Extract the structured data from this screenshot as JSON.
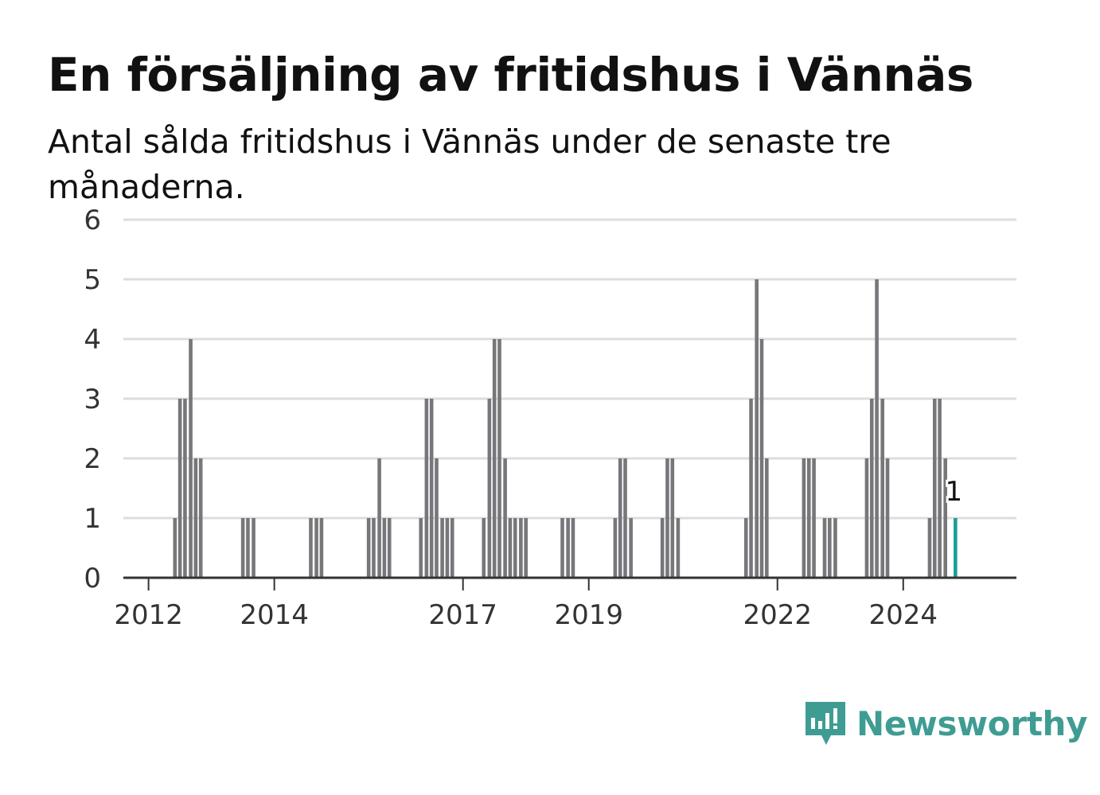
{
  "title": "En försäljning av fritidshus i Vännäs",
  "subtitle": "Antal sålda fritidshus i Vännäs under de senaste tre månaderna.",
  "brand": {
    "name": "Newsworthy",
    "icon": "newsworthy-logo-icon",
    "color": "#3f9c93"
  },
  "colors": {
    "bar": "#77777b",
    "highlight": "#1a9e96",
    "grid": "#dddddd",
    "axis": "#333333"
  },
  "chart_data": {
    "type": "bar",
    "xlabel": "",
    "ylabel": "",
    "ylim": [
      0,
      6
    ],
    "yticks": [
      0,
      1,
      2,
      3,
      4,
      5,
      6
    ],
    "xlim": [
      2011.6,
      2025.8
    ],
    "xticks": [
      {
        "label": "2012",
        "value": 2012
      },
      {
        "label": "2014",
        "value": 2014
      },
      {
        "label": "2017",
        "value": 2017
      },
      {
        "label": "2019",
        "value": 2019
      },
      {
        "label": "2022",
        "value": 2022
      },
      {
        "label": "2024",
        "value": 2024
      }
    ],
    "grid": true,
    "series": [
      {
        "x": [
          2012.42,
          2012.5,
          2012.58,
          2012.67,
          2012.75,
          2012.83,
          2013.5,
          2013.58,
          2013.67,
          2014.58,
          2014.67,
          2014.75,
          2015.5,
          2015.58,
          2015.67,
          2015.75,
          2015.83,
          2016.33,
          2016.42,
          2016.5,
          2016.58,
          2016.67,
          2016.75,
          2016.83,
          2017.33,
          2017.42,
          2017.5,
          2017.58,
          2017.67,
          2017.75,
          2017.83,
          2017.92,
          2018.0,
          2018.58,
          2018.67,
          2018.75,
          2019.42,
          2019.5,
          2019.58,
          2019.67,
          2020.17,
          2020.25,
          2020.33,
          2020.42,
          2021.5,
          2021.58,
          2021.67,
          2021.75,
          2021.83,
          2022.42,
          2022.5,
          2022.58,
          2022.75,
          2022.83,
          2022.92,
          2023.42,
          2023.5,
          2023.58,
          2023.67,
          2023.75,
          2024.42,
          2024.5,
          2024.58,
          2024.67
        ],
        "values": [
          1,
          3,
          3,
          4,
          2,
          2,
          1,
          1,
          1,
          1,
          1,
          1,
          1,
          1,
          2,
          1,
          1,
          1,
          3,
          3,
          2,
          1,
          1,
          1,
          1,
          3,
          4,
          4,
          2,
          1,
          1,
          1,
          1,
          1,
          1,
          1,
          1,
          2,
          2,
          1,
          1,
          2,
          2,
          1,
          1,
          3,
          5,
          4,
          2,
          2,
          2,
          2,
          1,
          1,
          1,
          2,
          3,
          5,
          3,
          2,
          1,
          3,
          3,
          2
        ]
      }
    ],
    "highlight": {
      "x": 2024.83,
      "value": 1,
      "label": "1"
    }
  }
}
